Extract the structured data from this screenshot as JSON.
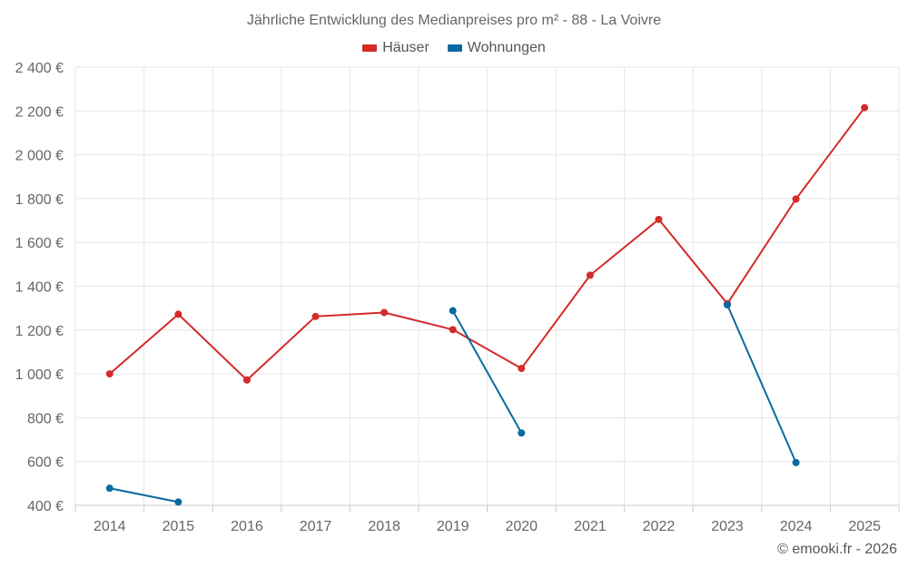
{
  "chart_data": {
    "type": "line",
    "title": "Jährliche Entwicklung des Medianpreises pro m² - 88 - La Voivre",
    "xlabel": "",
    "ylabel": "",
    "categories": [
      "2014",
      "2015",
      "2016",
      "2017",
      "2018",
      "2019",
      "2020",
      "2021",
      "2022",
      "2023",
      "2024",
      "2025"
    ],
    "ylim": [
      400,
      2400
    ],
    "y_ticks": [
      400,
      600,
      800,
      1000,
      1200,
      1400,
      1600,
      1800,
      2000,
      2200,
      2400
    ],
    "y_tick_labels": [
      "400 €",
      "600 €",
      "800 €",
      "1 000 €",
      "1 200 €",
      "1 400 €",
      "1 600 €",
      "1 800 €",
      "2 000 €",
      "2 200 €",
      "2 400 €"
    ],
    "grid": true,
    "legend_position": "top-center",
    "series": [
      {
        "name": "Häuser",
        "color": "#d42a2a",
        "values": [
          1000,
          1272,
          972,
          1262,
          1280,
          1202,
          1025,
          1450,
          1705,
          1320,
          1798,
          2215
        ]
      },
      {
        "name": "Wohnungen",
        "color": "#0a6aa1",
        "values": [
          478,
          415,
          null,
          null,
          null,
          1288,
          730,
          null,
          null,
          1315,
          595,
          null
        ]
      }
    ]
  },
  "footer": {
    "copyright": "© emooki.fr - 2026"
  }
}
